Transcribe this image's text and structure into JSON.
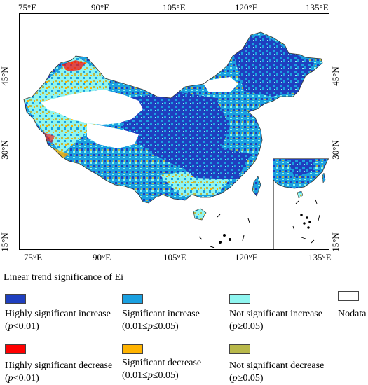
{
  "map": {
    "lon_ticks_top": [
      "75°E",
      "90°E",
      "105°E",
      "120°E",
      "135°E"
    ],
    "lon_ticks_bottom": [
      "75°E",
      "90°E",
      "105°E",
      "120°E",
      "135°E"
    ],
    "lat_ticks_left": [
      "45°N",
      "30°N",
      "15°N"
    ],
    "lat_ticks_right": [
      "45°N",
      "30°N",
      "15°N"
    ],
    "lon_range": [
      72,
      136
    ],
    "lat_range": [
      14,
      55
    ],
    "inset": "South China Sea islands"
  },
  "legend": {
    "title": "Linear trend significance of Ei",
    "items": [
      {
        "label": "Highly significant increase",
        "sub_italic": "p",
        "sub_rest": "<0.01",
        "sub_prefix": "(",
        "sub_suffix": ")",
        "color": "#1f3fbf"
      },
      {
        "label": "Significant increase",
        "sub_prefix": "(0.01≤",
        "sub_italic": "p",
        "sub_rest": "≤0.05)",
        "sub_suffix": "",
        "color": "#1aa0e0"
      },
      {
        "label": "Not significant increase",
        "sub_prefix": "(",
        "sub_italic": "p",
        "sub_rest": "≥0.05)",
        "sub_suffix": "",
        "color": "#8ff5f0"
      },
      {
        "label": "Nodata",
        "sub_prefix": "",
        "sub_italic": "",
        "sub_rest": "",
        "sub_suffix": "",
        "color": "#ffffff"
      },
      {
        "label": "Highly significant decrease",
        "sub_prefix": "",
        "sub_italic": "p",
        "sub_rest": "<0.01)",
        "sub_suffix": "",
        "color": "#ff0000"
      },
      {
        "label": "Significant decrease",
        "sub_prefix": "(0.01≤",
        "sub_italic": "p",
        "sub_rest": "≤0.05)",
        "sub_suffix": "",
        "color": "#ffb300"
      },
      {
        "label": "Not significant decrease",
        "sub_prefix": "(",
        "sub_italic": "p",
        "sub_rest": "≥0.05)",
        "sub_suffix": "",
        "color": "#b8b84a"
      }
    ]
  },
  "colors": {
    "highly_inc": "#1f3fbf",
    "sig_inc": "#1aa0e0",
    "nsig_inc": "#8ff5f0",
    "nsig_dec": "#b8b84a",
    "sig_dec": "#ffb300",
    "highly_dec": "#ff0000",
    "nodata": "#ffffff"
  }
}
